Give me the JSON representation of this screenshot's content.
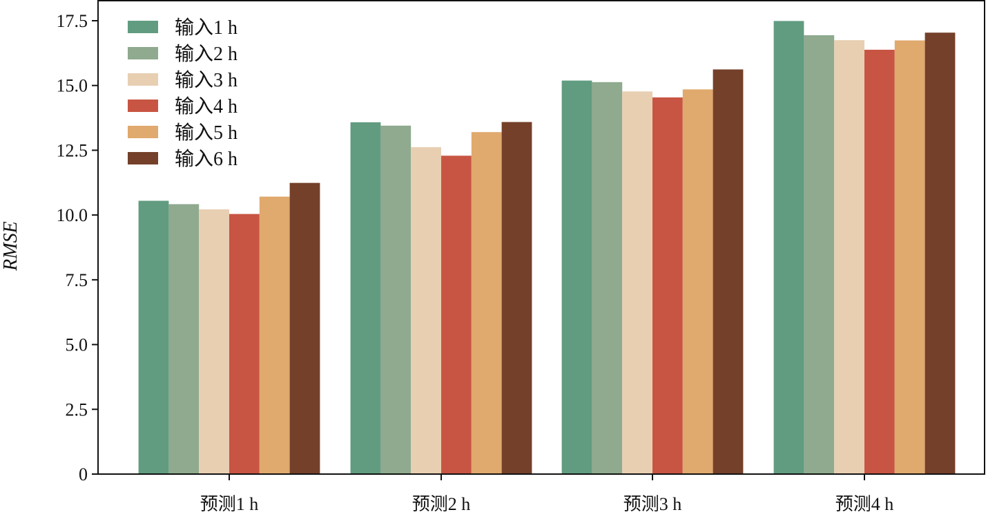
{
  "chart_data": {
    "type": "bar",
    "title": "",
    "xlabel": "",
    "ylabel": "RMSE",
    "categories": [
      "预测1 h",
      "预测2 h",
      "预测3 h",
      "预测4 h"
    ],
    "series": [
      {
        "name": "输入1 h",
        "color": "#619c80",
        "values": [
          10.55,
          13.58,
          15.19,
          17.49
        ]
      },
      {
        "name": "输入2 h",
        "color": "#8faa8f",
        "values": [
          10.42,
          13.45,
          15.13,
          16.94
        ]
      },
      {
        "name": "输入3 h",
        "color": "#e8cfb2",
        "values": [
          10.22,
          12.62,
          14.77,
          16.75
        ]
      },
      {
        "name": "输入4 h",
        "color": "#c85543",
        "values": [
          10.04,
          12.29,
          14.54,
          16.38
        ]
      },
      {
        "name": "输入5 h",
        "color": "#e0a96d",
        "values": [
          10.71,
          13.2,
          14.85,
          16.74
        ]
      },
      {
        "name": "输入6 h",
        "color": "#74402a",
        "values": [
          11.24,
          13.59,
          15.62,
          17.04
        ]
      }
    ],
    "yticks": [
      0,
      2.5,
      5.0,
      7.5,
      10.0,
      12.5,
      15.0,
      17.5
    ],
    "ytick_labels": [
      "0",
      "2.5",
      "5.0",
      "7.5",
      "10.0",
      "12.5",
      "15.0",
      "17.5"
    ],
    "ylim": [
      0,
      18.3
    ],
    "grid": false,
    "legend_position": "top-left"
  }
}
